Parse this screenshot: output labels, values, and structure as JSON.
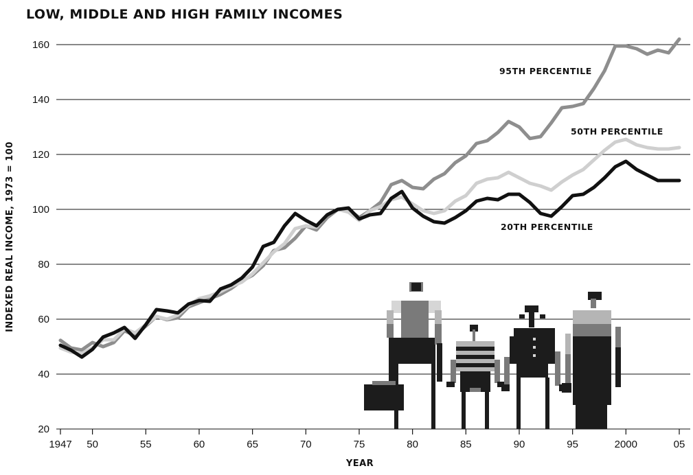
{
  "chart_data": {
    "type": "line",
    "title": "LOW, MIDDLE AND HIGH FAMILY INCOMES",
    "xlabel": "YEAR",
    "ylabel": "INDEXED REAL INCOME, 1973 = 100",
    "xlim": [
      1947,
      2005
    ],
    "ylim": [
      20,
      160
    ],
    "yticks": [
      20,
      40,
      60,
      80,
      100,
      120,
      140,
      160
    ],
    "xticks": [
      {
        "value": 1947,
        "label": "1947"
      },
      {
        "value": 1950,
        "label": "50"
      },
      {
        "value": 1955,
        "label": "55"
      },
      {
        "value": 1960,
        "label": "60"
      },
      {
        "value": 1965,
        "label": "65"
      },
      {
        "value": 1970,
        "label": "70"
      },
      {
        "value": 1975,
        "label": "75"
      },
      {
        "value": 1980,
        "label": "80"
      },
      {
        "value": 1985,
        "label": "85"
      },
      {
        "value": 1990,
        "label": "90"
      },
      {
        "value": 1995,
        "label": "95"
      },
      {
        "value": 2000,
        "label": "2000"
      },
      {
        "value": 2005,
        "label": "05"
      }
    ],
    "grid": true,
    "x": [
      1947,
      1948,
      1949,
      1950,
      1951,
      1952,
      1953,
      1954,
      1955,
      1956,
      1957,
      1958,
      1959,
      1960,
      1961,
      1962,
      1963,
      1964,
      1965,
      1966,
      1967,
      1968,
      1969,
      1970,
      1971,
      1972,
      1973,
      1974,
      1975,
      1976,
      1977,
      1978,
      1979,
      1980,
      1981,
      1982,
      1983,
      1984,
      1985,
      1986,
      1987,
      1988,
      1989,
      1990,
      1991,
      1992,
      1993,
      1994,
      1995,
      1996,
      1997,
      1998,
      1999,
      2000,
      2001,
      2002,
      2003,
      2004,
      2005
    ],
    "series": [
      {
        "name": "95TH PERCENTILE",
        "color": "#8e8e8e",
        "values": [
          52.3,
          49.5,
          48.8,
          51.5,
          50.0,
          51.5,
          55.8,
          54.0,
          57.5,
          61.0,
          59.8,
          60.5,
          64.5,
          66.0,
          67.5,
          69.0,
          71.2,
          74.0,
          76.0,
          79.5,
          85.0,
          86.0,
          89.5,
          94.0,
          92.5,
          97.0,
          100.0,
          100.0,
          97.0,
          99.5,
          102.5,
          109.0,
          110.5,
          108.0,
          107.5,
          111.0,
          113.0,
          117.0,
          119.5,
          124.0,
          125.0,
          128.0,
          132.0,
          130.0,
          125.8,
          126.5,
          131.5,
          137.0,
          137.5,
          138.5,
          144.0,
          150.5,
          159.5,
          159.5,
          158.5,
          156.5,
          158.0,
          157.0,
          162.0
        ]
      },
      {
        "name": "50TH PERCENTILE",
        "color": "#cfcfcf",
        "values": [
          49.5,
          48.0,
          47.5,
          49.5,
          52.5,
          52.5,
          56.5,
          55.0,
          58.0,
          61.0,
          60.0,
          61.5,
          65.0,
          67.5,
          68.5,
          70.0,
          72.0,
          73.5,
          76.5,
          80.5,
          84.5,
          87.5,
          93.0,
          94.0,
          93.5,
          98.0,
          100.0,
          99.0,
          96.0,
          99.5,
          101.0,
          103.5,
          104.5,
          102.0,
          99.5,
          98.5,
          99.5,
          103.0,
          105.0,
          109.5,
          111.0,
          111.5,
          113.5,
          111.5,
          109.5,
          108.5,
          107.0,
          110.0,
          112.5,
          114.5,
          118.0,
          121.5,
          124.5,
          125.5,
          123.5,
          122.5,
          122.0,
          122.0,
          122.5
        ]
      },
      {
        "name": "20TH PERCENTILE",
        "color": "#111111",
        "values": [
          50.5,
          48.7,
          46.2,
          49.0,
          53.5,
          55.0,
          57.0,
          53.0,
          58.0,
          63.5,
          63.0,
          62.3,
          65.5,
          66.8,
          66.5,
          71.0,
          72.5,
          75.0,
          79.0,
          86.5,
          88.0,
          94.0,
          98.5,
          96.0,
          94.0,
          98.0,
          100.0,
          100.5,
          96.5,
          98.0,
          98.5,
          104.0,
          106.5,
          100.5,
          97.5,
          95.5,
          95.0,
          97.0,
          99.5,
          103.0,
          104.0,
          103.5,
          105.5,
          105.5,
          102.5,
          98.5,
          97.5,
          101.0,
          105.0,
          105.5,
          108.0,
          111.5,
          115.5,
          117.5,
          114.5,
          112.5,
          110.5,
          110.5,
          110.5
        ]
      }
    ],
    "annotations": [
      {
        "series": "95TH PERCENTILE",
        "text": "95TH PERCENTILE"
      },
      {
        "series": "50TH PERCENTILE",
        "text": "50TH PERCENTILE"
      },
      {
        "series": "20TH PERCENTILE",
        "text": "20TH PERCENTILE"
      }
    ]
  },
  "illustration": {
    "icon": "pixel-family-icon",
    "palette": {
      "dark": "#1c1c1c",
      "mid": "#7a7a7a",
      "light": "#b5b5b5",
      "pale": "#d6d6d6"
    }
  }
}
